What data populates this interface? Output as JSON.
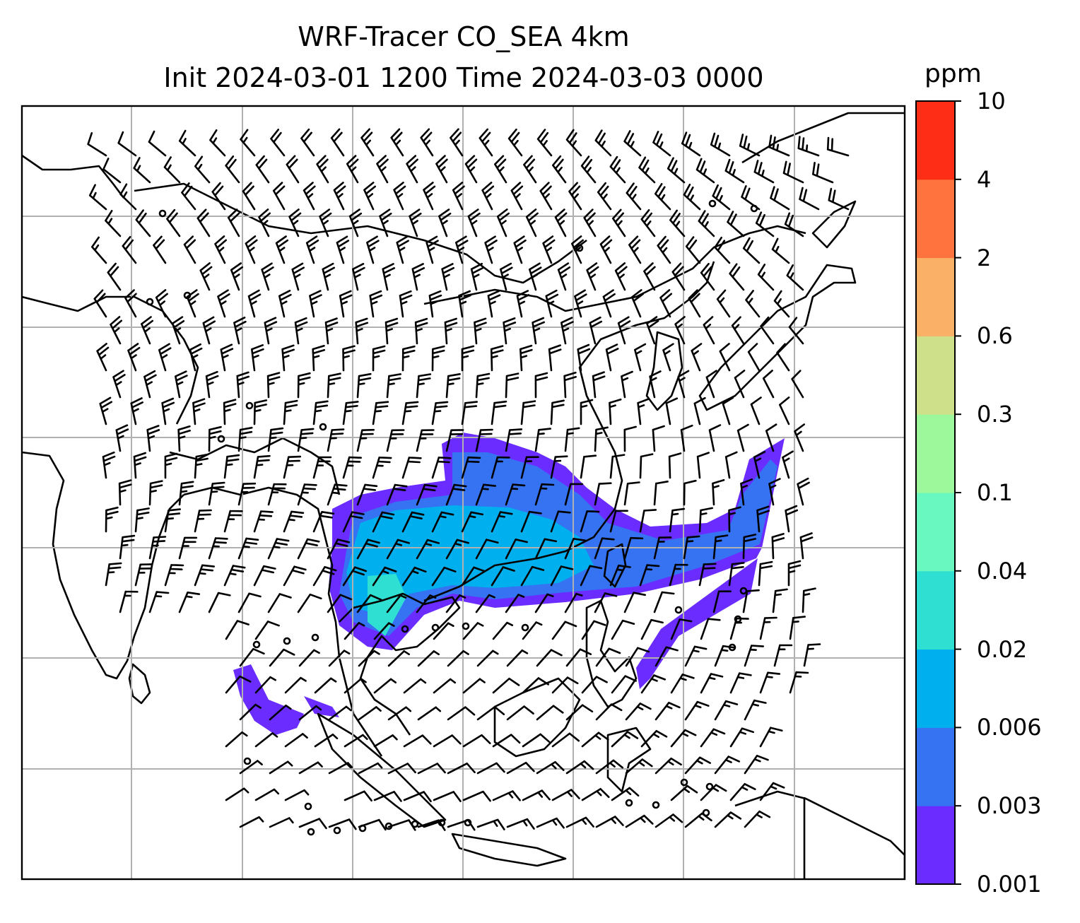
{
  "title": {
    "line1": "WRF-Tracer CO_SEA 4km",
    "line2": "Init 2024-03-01 1200 Time 2024-03-03 0000"
  },
  "colorbar": {
    "units": "ppm",
    "ticks": [
      "0.001",
      "0.003",
      "0.006",
      "0.02",
      "0.04",
      "0.1",
      "0.3",
      "0.6",
      "2",
      "4",
      "10"
    ],
    "colors": [
      "#6a2cff",
      "#3573f2",
      "#00b0ee",
      "#2fe0d2",
      "#69f8bf",
      "#9cf89b",
      "#cfe08a",
      "#fbb067",
      "#ff733f",
      "#fe2e16"
    ]
  },
  "map": {
    "gridlines": true,
    "coastline_color": "#000000",
    "gridline_color": "#b0b0b0",
    "field": "CO_SEA tracer concentration",
    "overlay": "wind barbs"
  }
}
